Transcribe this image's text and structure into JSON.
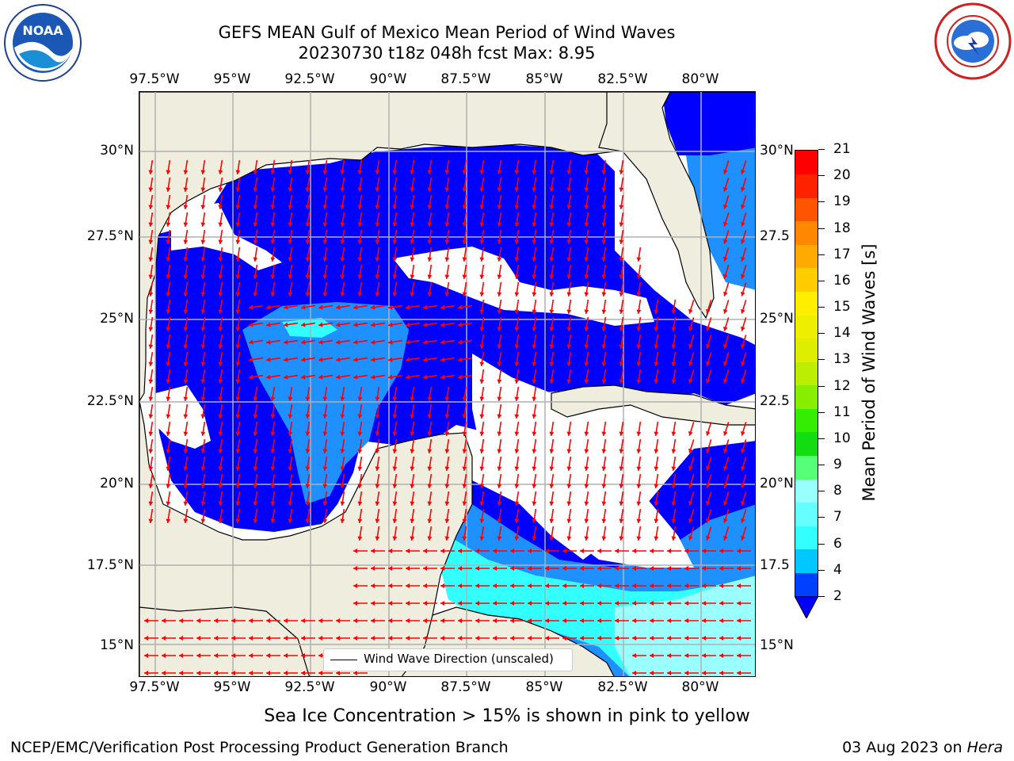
{
  "title": {
    "line1": "GEFS MEAN Gulf of Mexico Mean Period of Wind Waves",
    "line2": "20230730 t18z 048h fcst   Max: 8.95"
  },
  "logos": {
    "left": {
      "icon": "noaa-logo",
      "text": "NOAA"
    },
    "right": {
      "icon": "national-weather-service-logo"
    }
  },
  "axes": {
    "lon_labels": [
      "97.5°W",
      "95°W",
      "92.5°W",
      "90°W",
      "87.5°W",
      "85°W",
      "82.5°W",
      "80°W"
    ],
    "lat_labels": [
      "30°N",
      "27.5°N",
      "25°N",
      "22.5°N",
      "20°N",
      "17.5°N",
      "15°N"
    ],
    "right_lat_labels": [
      "30°N",
      "27.5",
      "25°N",
      "22.5",
      "20°N",
      "17.5",
      "15°N"
    ]
  },
  "legend": {
    "label": "Wind Wave Direction (unscaled)"
  },
  "colorbar": {
    "label": "Mean Period of Wind Waves [s]",
    "ticks": [
      "2",
      "4",
      "6",
      "7",
      "8",
      "9",
      "10",
      "11",
      "12",
      "13",
      "14",
      "15",
      "16",
      "17",
      "18",
      "19",
      "20",
      "21"
    ],
    "colors": [
      "#0040ff",
      "#00c8ff",
      "#33ffff",
      "#66ffff",
      "#99ffff",
      "#55ff77",
      "#11dd11",
      "#33ee00",
      "#88ee00",
      "#bbee00",
      "#ddee00",
      "#eeee00",
      "#ffee00",
      "#ffcc00",
      "#ffaa00",
      "#ff8800",
      "#ff5500",
      "#ff2200",
      "#ff0000"
    ]
  },
  "map_colors": {
    "land": "#efedde",
    "ocean_low": "#0000ff",
    "ocean_mid": "#1e90ff",
    "ocean_high": "#33ffff",
    "ocean_higher": "#99ffff",
    "arrow": "#ff0000",
    "grid": "#b0b0b0"
  },
  "notes": {
    "sea_ice": "Sea Ice Concentration > 15% is shown in pink to yellow"
  },
  "footer": {
    "left": "NCEP/EMC/Verification Post Processing Product Generation Branch",
    "right_date": "03 Aug 2023 on ",
    "right_host": "Hera"
  }
}
